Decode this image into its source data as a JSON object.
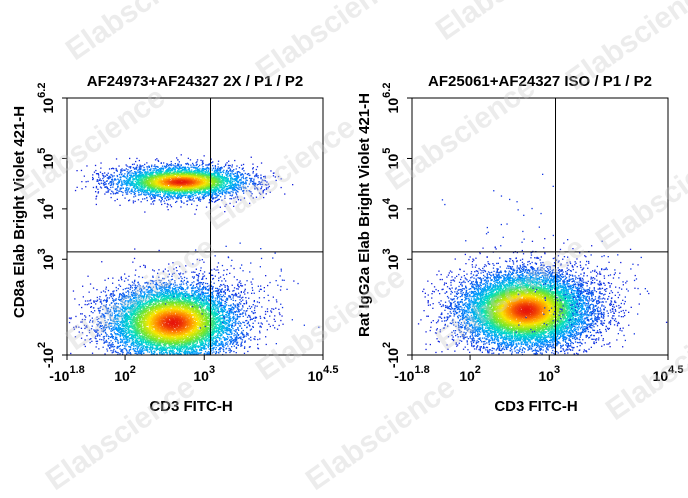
{
  "watermark": "Elabscience",
  "chart_data": [
    {
      "type": "scatter",
      "title": "AF24973+AF24327 2X / P1 / P2",
      "xlabel": "CD3 FITC-H",
      "ylabel": "CD8a Elab Bright Violet 421-H",
      "x_scale": "biexponential",
      "y_scale": "biexponential",
      "x_ticks": [
        {
          "base": "-10",
          "exp": "1.8",
          "value": -63
        },
        {
          "base": "10",
          "exp": "2",
          "value": 100
        },
        {
          "base": "10",
          "exp": "3",
          "value": 1000
        },
        {
          "base": "10",
          "exp": "4.5",
          "value": 31623
        }
      ],
      "y_ticks": [
        {
          "base": "-10",
          "exp": "2",
          "value": -100
        },
        {
          "base": "10",
          "exp": "3",
          "value": 1000
        },
        {
          "base": "10",
          "exp": "4",
          "value": 10000
        },
        {
          "base": "10",
          "exp": "5",
          "value": 100000
        },
        {
          "base": "10",
          "exp": "6.2",
          "value": 1584893
        }
      ],
      "quadrant_gate": {
        "x": 1200,
        "y": 1400
      },
      "populations": [
        {
          "label": "CD3- CD8a-",
          "center": {
            "x": 400,
            "y": 45
          },
          "events": 9000
        },
        {
          "label": "CD3- CD8a+",
          "center": {
            "x": 500,
            "y": 35000
          },
          "events": 4500
        },
        {
          "label": "CD3+ CD8a-",
          "center": {
            "x": 3000,
            "y": 200
          },
          "events": 150
        }
      ],
      "grid": false
    },
    {
      "type": "scatter",
      "title": "AF25061+AF24327 ISO / P1 / P2",
      "xlabel": "CD3 FITC-H",
      "ylabel": "Rat IgG2a Elab Bright Violet 421-H",
      "x_scale": "biexponential",
      "y_scale": "biexponential",
      "x_ticks": [
        {
          "base": "-10",
          "exp": "1.8",
          "value": -63
        },
        {
          "base": "10",
          "exp": "2",
          "value": 100
        },
        {
          "base": "10",
          "exp": "3",
          "value": 1000
        },
        {
          "base": "10",
          "exp": "4.5",
          "value": 31623
        }
      ],
      "y_ticks": [
        {
          "base": "-10",
          "exp": "2",
          "value": -100
        },
        {
          "base": "10",
          "exp": "3",
          "value": 1000
        },
        {
          "base": "10",
          "exp": "4",
          "value": 10000
        },
        {
          "base": "10",
          "exp": "5",
          "value": 100000
        },
        {
          "base": "10",
          "exp": "6.2",
          "value": 1584893
        }
      ],
      "quadrant_gate": {
        "x": 1200,
        "y": 1400
      },
      "populations": [
        {
          "label": "CD3- IgG2a-",
          "center": {
            "x": 500,
            "y": 100
          },
          "events": 11000
        },
        {
          "label": "CD3+ IgG2a-",
          "center": {
            "x": 3000,
            "y": 150
          },
          "events": 250
        },
        {
          "label": "sparse IgG2a+",
          "center": {
            "x": 400,
            "y": 8000
          },
          "events": 30
        }
      ],
      "grid": false
    }
  ]
}
